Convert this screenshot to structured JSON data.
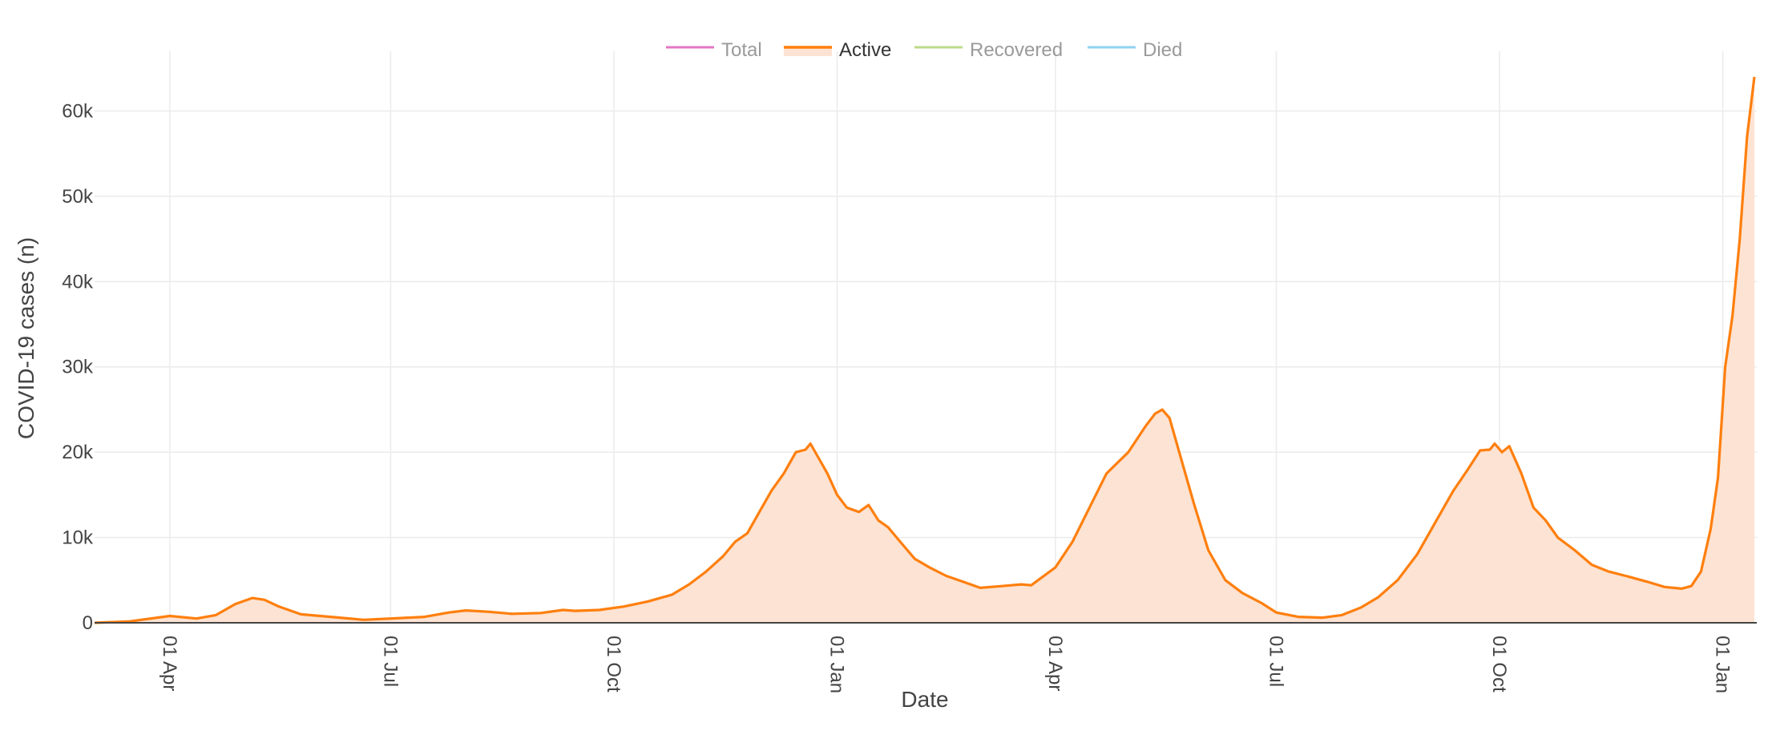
{
  "chart_data": {
    "type": "area",
    "xlabel": "Date",
    "ylabel": "COVID-19 cases (n)",
    "ylim": [
      0,
      67000
    ],
    "y_ticks": [
      {
        "value": 0,
        "label": "0"
      },
      {
        "value": 10000,
        "label": "10k"
      },
      {
        "value": 20000,
        "label": "20k"
      },
      {
        "value": 30000,
        "label": "30k"
      },
      {
        "value": 40000,
        "label": "40k"
      },
      {
        "value": 50000,
        "label": "50k"
      },
      {
        "value": 60000,
        "label": "60k"
      }
    ],
    "x_range": [
      "2020-03-01",
      "2022-01-15"
    ],
    "x_ticks": [
      {
        "date": "2020-04-01",
        "label": "01 Apr"
      },
      {
        "date": "2020-07-01",
        "label": "01 Jul"
      },
      {
        "date": "2020-10-01",
        "label": "01 Oct"
      },
      {
        "date": "2021-01-01",
        "label": "01 Jan"
      },
      {
        "date": "2021-04-01",
        "label": "01 Apr"
      },
      {
        "date": "2021-07-01",
        "label": "01 Jul"
      },
      {
        "date": "2021-10-01",
        "label": "01 Oct"
      },
      {
        "date": "2022-01-01",
        "label": "01 Jan"
      }
    ],
    "grid": true,
    "legend": {
      "placement": "top-center",
      "entries": [
        {
          "name": "Total",
          "color": "#e377c2",
          "active": false
        },
        {
          "name": "Active",
          "color": "#ff7f0e",
          "active": true
        },
        {
          "name": "Recovered",
          "color": "#bcdb8a",
          "active": false
        },
        {
          "name": "Died",
          "color": "#8fd3f0",
          "active": false
        }
      ]
    },
    "series": [
      {
        "name": "Active",
        "color": "#ff7f0e",
        "fill": "#fde3d3",
        "points": [
          [
            "2020-03-01",
            0
          ],
          [
            "2020-03-15",
            150
          ],
          [
            "2020-04-01",
            800
          ],
          [
            "2020-04-12",
            500
          ],
          [
            "2020-04-20",
            900
          ],
          [
            "2020-04-28",
            2200
          ],
          [
            "2020-05-05",
            2900
          ],
          [
            "2020-05-10",
            2700
          ],
          [
            "2020-05-16",
            1900
          ],
          [
            "2020-05-25",
            1000
          ],
          [
            "2020-06-10",
            600
          ],
          [
            "2020-06-20",
            350
          ],
          [
            "2020-07-05",
            550
          ],
          [
            "2020-07-15",
            700
          ],
          [
            "2020-07-25",
            1200
          ],
          [
            "2020-08-01",
            1450
          ],
          [
            "2020-08-10",
            1300
          ],
          [
            "2020-08-20",
            1050
          ],
          [
            "2020-09-01",
            1150
          ],
          [
            "2020-09-10",
            1500
          ],
          [
            "2020-09-15",
            1400
          ],
          [
            "2020-09-25",
            1500
          ],
          [
            "2020-10-05",
            1900
          ],
          [
            "2020-10-15",
            2500
          ],
          [
            "2020-10-25",
            3300
          ],
          [
            "2020-11-01",
            4500
          ],
          [
            "2020-11-08",
            6000
          ],
          [
            "2020-11-15",
            7800
          ],
          [
            "2020-11-20",
            9500
          ],
          [
            "2020-11-25",
            10500
          ],
          [
            "2020-12-01",
            13500
          ],
          [
            "2020-12-05",
            15500
          ],
          [
            "2020-12-10",
            17500
          ],
          [
            "2020-12-15",
            20000
          ],
          [
            "2020-12-19",
            20300
          ],
          [
            "2020-12-21",
            21000
          ],
          [
            "2020-12-24",
            19500
          ],
          [
            "2020-12-28",
            17500
          ],
          [
            "2021-01-01",
            15000
          ],
          [
            "2021-01-05",
            13500
          ],
          [
            "2021-01-10",
            13000
          ],
          [
            "2021-01-14",
            13800
          ],
          [
            "2021-01-18",
            12000
          ],
          [
            "2021-01-22",
            11200
          ],
          [
            "2021-01-27",
            9500
          ],
          [
            "2021-02-02",
            7500
          ],
          [
            "2021-02-08",
            6500
          ],
          [
            "2021-02-15",
            5500
          ],
          [
            "2021-02-22",
            4800
          ],
          [
            "2021-03-01",
            4100
          ],
          [
            "2021-03-10",
            4300
          ],
          [
            "2021-03-18",
            4500
          ],
          [
            "2021-03-22",
            4400
          ],
          [
            "2021-04-01",
            6500
          ],
          [
            "2021-04-08",
            9500
          ],
          [
            "2021-04-15",
            13500
          ],
          [
            "2021-04-22",
            17500
          ],
          [
            "2021-05-01",
            20000
          ],
          [
            "2021-05-08",
            23000
          ],
          [
            "2021-05-12",
            24500
          ],
          [
            "2021-05-15",
            25000
          ],
          [
            "2021-05-18",
            24000
          ],
          [
            "2021-05-22",
            20000
          ],
          [
            "2021-05-28",
            14000
          ],
          [
            "2021-06-03",
            8500
          ],
          [
            "2021-06-10",
            5000
          ],
          [
            "2021-06-17",
            3500
          ],
          [
            "2021-06-25",
            2300
          ],
          [
            "2021-07-01",
            1200
          ],
          [
            "2021-07-10",
            700
          ],
          [
            "2021-07-20",
            600
          ],
          [
            "2021-07-28",
            900
          ],
          [
            "2021-08-05",
            1800
          ],
          [
            "2021-08-12",
            3000
          ],
          [
            "2021-08-20",
            5000
          ],
          [
            "2021-08-28",
            8000
          ],
          [
            "2021-09-05",
            12000
          ],
          [
            "2021-09-12",
            15500
          ],
          [
            "2021-09-18",
            18000
          ],
          [
            "2021-09-23",
            20200
          ],
          [
            "2021-09-27",
            20300
          ],
          [
            "2021-09-29",
            21000
          ],
          [
            "2021-10-02",
            20000
          ],
          [
            "2021-10-05",
            20700
          ],
          [
            "2021-10-10",
            17500
          ],
          [
            "2021-10-15",
            13500
          ],
          [
            "2021-10-20",
            12000
          ],
          [
            "2021-10-25",
            10000
          ],
          [
            "2021-11-01",
            8500
          ],
          [
            "2021-11-08",
            6800
          ],
          [
            "2021-11-15",
            6000
          ],
          [
            "2021-11-22",
            5500
          ],
          [
            "2021-12-01",
            4800
          ],
          [
            "2021-12-08",
            4200
          ],
          [
            "2021-12-15",
            4000
          ],
          [
            "2021-12-19",
            4300
          ],
          [
            "2021-12-23",
            6000
          ],
          [
            "2021-12-27",
            11000
          ],
          [
            "2021-12-30",
            17000
          ],
          [
            "2022-01-02",
            30000
          ],
          [
            "2022-01-05",
            36000
          ],
          [
            "2022-01-08",
            45000
          ],
          [
            "2022-01-11",
            57000
          ],
          [
            "2022-01-14",
            64000
          ]
        ]
      }
    ]
  }
}
